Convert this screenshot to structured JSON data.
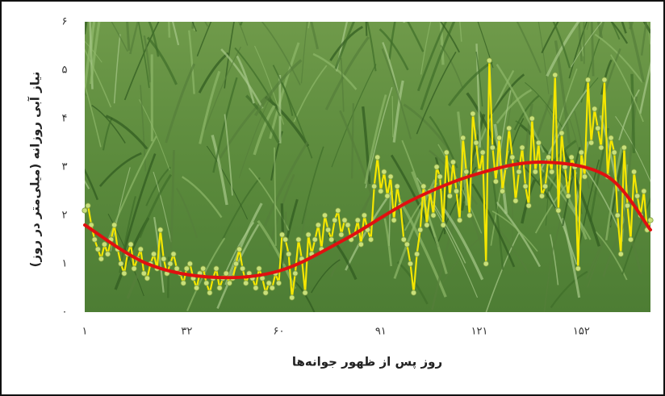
{
  "chart_data": {
    "type": "line",
    "xlabel": "روز پس از ظهور جوانه‌ها",
    "ylabel": "نیاز آبی روزانه (میلی‌متر در روز)",
    "x": [
      1,
      2,
      3,
      4,
      5,
      6,
      7,
      8,
      9,
      10,
      11,
      12,
      13,
      14,
      15,
      16,
      17,
      18,
      19,
      20,
      21,
      22,
      23,
      24,
      25,
      26,
      27,
      28,
      29,
      30,
      31,
      32,
      33,
      34,
      35,
      36,
      37,
      38,
      39,
      40,
      41,
      42,
      43,
      44,
      45,
      46,
      47,
      48,
      49,
      50,
      51,
      52,
      53,
      54,
      55,
      56,
      57,
      58,
      59,
      60,
      61,
      62,
      63,
      64,
      65,
      66,
      67,
      68,
      69,
      70,
      71,
      72,
      73,
      74,
      75,
      76,
      77,
      78,
      79,
      80,
      81,
      82,
      83,
      84,
      85,
      86,
      87,
      88,
      89,
      90,
      91,
      92,
      93,
      94,
      95,
      96,
      97,
      98,
      99,
      100,
      101,
      102,
      103,
      104,
      105,
      106,
      107,
      108,
      109,
      110,
      111,
      112,
      113,
      114,
      115,
      116,
      117,
      118,
      119,
      120,
      121,
      122,
      123,
      124,
      125,
      126,
      127,
      128,
      129,
      130,
      131,
      132,
      133,
      134,
      135,
      136,
      137,
      138,
      139,
      140,
      141,
      142,
      143,
      144,
      145,
      146,
      147,
      148,
      149,
      150,
      151,
      152,
      153,
      154,
      155,
      156,
      157,
      158,
      159,
      160,
      161,
      162,
      163,
      164,
      165,
      166,
      167,
      168,
      169,
      170,
      171,
      172,
      173
    ],
    "series": [
      {
        "color": "#f5e600",
        "values": [
          2.1,
          2.2,
          1.8,
          1.5,
          1.3,
          1.1,
          1.4,
          1.2,
          1.5,
          1.8,
          1.3,
          1.0,
          0.8,
          1.2,
          1.4,
          0.9,
          1.1,
          1.3,
          0.8,
          0.7,
          1.0,
          1.2,
          0.9,
          1.7,
          1.1,
          0.8,
          1.0,
          1.2,
          0.9,
          0.8,
          0.6,
          0.9,
          1.0,
          0.7,
          0.5,
          0.8,
          0.9,
          0.6,
          0.4,
          0.7,
          0.9,
          0.5,
          0.7,
          0.8,
          0.6,
          0.7,
          1.0,
          1.3,
          0.9,
          0.6,
          0.8,
          0.7,
          0.5,
          0.9,
          0.7,
          0.4,
          0.6,
          0.5,
          0.8,
          0.6,
          1.6,
          1.5,
          1.2,
          0.3,
          0.8,
          1.5,
          1.1,
          0.4,
          1.6,
          1.2,
          1.5,
          1.8,
          1.3,
          2.0,
          1.7,
          1.5,
          1.9,
          2.1,
          1.6,
          1.9,
          1.8,
          1.5,
          1.6,
          1.9,
          1.4,
          2.0,
          1.7,
          1.5,
          2.6,
          3.2,
          2.5,
          2.9,
          2.4,
          2.8,
          1.9,
          2.6,
          2.2,
          1.5,
          1.4,
          1.0,
          0.4,
          1.2,
          1.7,
          2.6,
          1.8,
          2.5,
          2.0,
          3.0,
          2.8,
          1.8,
          3.3,
          2.4,
          3.1,
          2.5,
          1.9,
          3.6,
          2.9,
          2.0,
          4.1,
          3.5,
          2.9,
          3.3,
          1.0,
          5.2,
          3.4,
          2.7,
          3.6,
          2.5,
          3.0,
          3.8,
          3.2,
          2.3,
          2.9,
          3.4,
          2.6,
          2.2,
          4.0,
          2.9,
          3.5,
          2.4,
          2.6,
          3.2,
          2.9,
          4.9,
          2.1,
          3.7,
          3.0,
          2.4,
          3.2,
          3.0,
          0.9,
          3.3,
          2.8,
          4.8,
          3.5,
          4.2,
          3.8,
          3.4,
          4.8,
          2.8,
          3.6,
          3.3,
          2.0,
          1.2,
          3.4,
          2.2,
          1.5,
          2.9,
          2.4,
          2.0,
          2.5,
          1.7,
          1.9
        ]
      },
      {
        "color": "#e01010",
        "x": [
          1,
          20,
          40,
          60,
          80,
          100,
          120,
          140,
          160,
          173
        ],
        "values": [
          1.8,
          1.0,
          0.72,
          0.85,
          1.5,
          2.3,
          2.85,
          3.1,
          2.8,
          1.7
        ]
      }
    ],
    "xlim": [
      1,
      173
    ],
    "ylim": [
      0,
      6
    ],
    "xticks": [
      {
        "value": 1,
        "label": "۱"
      },
      {
        "value": 32,
        "label": "۳۲"
      },
      {
        "value": 60,
        "label": "۶۰"
      },
      {
        "value": 91,
        "label": "۹۱"
      },
      {
        "value": 121,
        "label": "۱۲۱"
      },
      {
        "value": 152,
        "label": "۱۵۲"
      }
    ],
    "yticks": [
      {
        "value": 0,
        "label": "۰"
      },
      {
        "value": 1,
        "label": "۱"
      },
      {
        "value": 2,
        "label": "۲"
      },
      {
        "value": 3,
        "label": "۳"
      },
      {
        "value": 4,
        "label": "۴"
      },
      {
        "value": 5,
        "label": "۵"
      },
      {
        "value": 6,
        "label": "۶"
      }
    ]
  }
}
